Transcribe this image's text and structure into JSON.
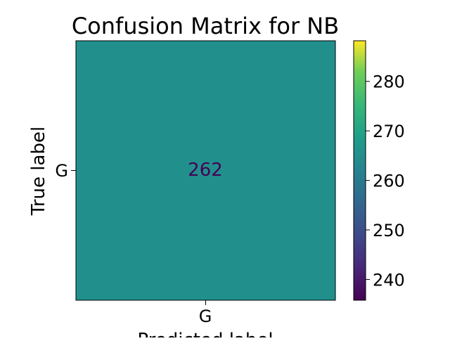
{
  "chart_data": {
    "type": "heatmap",
    "title": "Confusion Matrix for NB",
    "xlabel": "Predicted label",
    "ylabel": "True label",
    "x_categories": [
      "G"
    ],
    "y_categories": [
      "G"
    ],
    "values": [
      [
        262
      ]
    ],
    "colormap": "viridis",
    "cell_color": "#21908d",
    "cell_text_color": "#440154",
    "colorbar": {
      "range": [
        235.8,
        288.2
      ],
      "ticks": [
        240,
        250,
        260,
        270,
        280
      ]
    }
  }
}
